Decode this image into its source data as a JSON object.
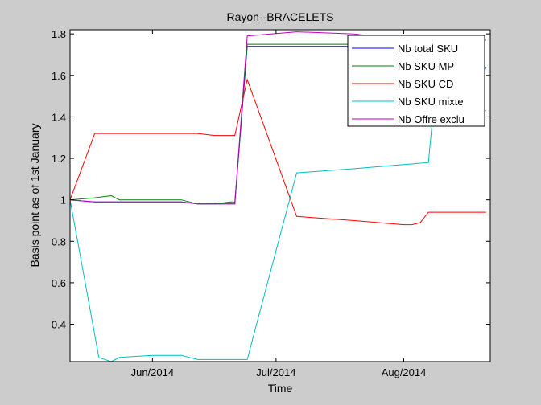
{
  "chart_data": {
    "type": "line",
    "title": "Rayon--BRACELETS",
    "xlabel": "Time",
    "ylabel": "Basis point as of 1st January",
    "xlim": [
      "2014-05-12",
      "2014-08-22"
    ],
    "ylim": [
      0.22,
      1.82
    ],
    "xticks": [
      {
        "date": "2014-06-01",
        "label": "Jun/2014"
      },
      {
        "date": "2014-07-01",
        "label": "Jul/2014"
      },
      {
        "date": "2014-08-01",
        "label": "Aug/2014"
      }
    ],
    "yticks": [
      {
        "value": 0.4,
        "label": "0.4"
      },
      {
        "value": 0.6,
        "label": "0.6"
      },
      {
        "value": 0.8,
        "label": "0.8"
      },
      {
        "value": 1.0,
        "label": "1"
      },
      {
        "value": 1.2,
        "label": "1.2"
      },
      {
        "value": 1.4,
        "label": "1.4"
      },
      {
        "value": 1.6,
        "label": "1.6"
      },
      {
        "value": 1.8,
        "label": "1.8"
      }
    ],
    "grid": false,
    "legend_position": "top-right",
    "series": [
      {
        "name": "Nb total SKU",
        "color": "#0000ff",
        "x": [
          "2014-05-12",
          "2014-05-18",
          "2014-05-22",
          "2014-05-24",
          "2014-06-01",
          "2014-06-08",
          "2014-06-12",
          "2014-06-16",
          "2014-06-20",
          "2014-06-21",
          "2014-06-24",
          "2014-07-06",
          "2014-07-20",
          "2014-08-01",
          "2014-08-07",
          "2014-08-08",
          "2014-08-20",
          "2014-08-21"
        ],
        "values": [
          1.0,
          0.99,
          0.99,
          0.99,
          0.99,
          0.99,
          0.98,
          0.98,
          0.98,
          0.98,
          1.74,
          1.74,
          1.74,
          1.74,
          1.74,
          1.6,
          1.6,
          1.64
        ]
      },
      {
        "name": "Nb SKU MP",
        "color": "#008000",
        "x": [
          "2014-05-12",
          "2014-05-18",
          "2014-05-22",
          "2014-05-24",
          "2014-06-01",
          "2014-06-08",
          "2014-06-12",
          "2014-06-16",
          "2014-06-20",
          "2014-06-21",
          "2014-06-24",
          "2014-07-06",
          "2014-07-20",
          "2014-08-01",
          "2014-08-07",
          "2014-08-08",
          "2014-08-20",
          "2014-08-21"
        ],
        "values": [
          1.0,
          1.01,
          1.02,
          1.0,
          1.0,
          1.0,
          0.98,
          0.98,
          0.99,
          0.99,
          1.75,
          1.75,
          1.75,
          1.75,
          1.75,
          1.62,
          1.62,
          1.64
        ]
      },
      {
        "name": "Nb SKU CD",
        "color": "#ff0000",
        "x": [
          "2014-05-12",
          "2014-05-18",
          "2014-05-22",
          "2014-05-24",
          "2014-06-01",
          "2014-06-08",
          "2014-06-12",
          "2014-06-16",
          "2014-06-20",
          "2014-06-21",
          "2014-06-24",
          "2014-07-06",
          "2014-07-20",
          "2014-08-01",
          "2014-08-03",
          "2014-08-05",
          "2014-08-07",
          "2014-08-09",
          "2014-08-20",
          "2014-08-21"
        ],
        "values": [
          1.0,
          1.32,
          1.32,
          1.32,
          1.32,
          1.32,
          1.32,
          1.31,
          1.31,
          1.31,
          1.58,
          0.92,
          0.9,
          0.88,
          0.88,
          0.89,
          0.94,
          0.94,
          0.94,
          0.94
        ]
      },
      {
        "name": "Nb SKU mixte",
        "color": "#00bfbf",
        "x": [
          "2014-05-12",
          "2014-05-19",
          "2014-05-22",
          "2014-05-24",
          "2014-06-01",
          "2014-06-08",
          "2014-06-12",
          "2014-06-16",
          "2014-06-20",
          "2014-06-21",
          "2014-06-24",
          "2014-07-06",
          "2014-07-20",
          "2014-08-01",
          "2014-08-07",
          "2014-08-08",
          "2014-08-20",
          "2014-08-21"
        ],
        "values": [
          1.0,
          0.24,
          0.22,
          0.24,
          0.25,
          0.25,
          0.23,
          0.23,
          0.23,
          0.23,
          0.23,
          1.13,
          1.15,
          1.17,
          1.18,
          1.4,
          1.43,
          1.43
        ]
      },
      {
        "name": "Nb Offre exclu",
        "color": "#bf00bf",
        "x": [
          "2014-05-12",
          "2014-05-18",
          "2014-05-22",
          "2014-05-24",
          "2014-06-01",
          "2014-06-08",
          "2014-06-12",
          "2014-06-16",
          "2014-06-20",
          "2014-06-21",
          "2014-06-24",
          "2014-07-06",
          "2014-07-20",
          "2014-08-01",
          "2014-08-07",
          "2014-08-08",
          "2014-08-20",
          "2014-08-21"
        ],
        "values": [
          1.0,
          0.99,
          0.99,
          0.99,
          0.99,
          0.99,
          0.98,
          0.98,
          0.98,
          0.98,
          1.79,
          1.81,
          1.8,
          1.77,
          1.77,
          1.77,
          1.77,
          1.77
        ]
      }
    ]
  }
}
